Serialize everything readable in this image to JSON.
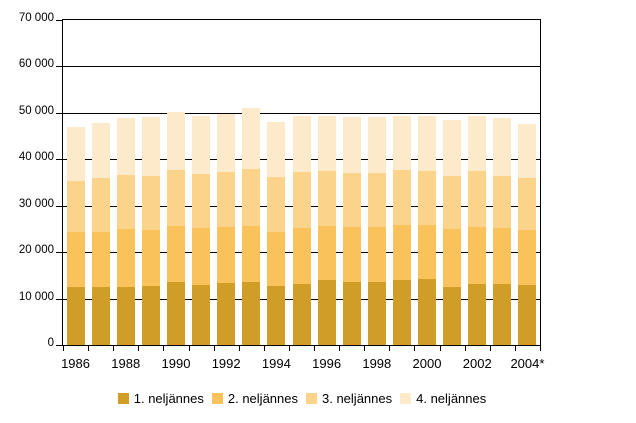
{
  "chart_data": {
    "type": "bar",
    "variant": "stacked",
    "title": "",
    "categories": [
      "1986",
      "1987",
      "1988",
      "1989",
      "1990",
      "1991",
      "1992",
      "1993",
      "1994",
      "1995",
      "1996",
      "1997",
      "1998",
      "1999",
      "2000",
      "2001",
      "2002",
      "2003",
      "2004*"
    ],
    "x_tick_labels": [
      "1986",
      "1988",
      "1990",
      "1992",
      "1994",
      "1996",
      "1998",
      "2000",
      "2002",
      "2004*"
    ],
    "y_tick_labels": [
      "0",
      "10 000",
      "20 000",
      "30 000",
      "40 000",
      "50 000",
      "60 000",
      "70 000"
    ],
    "ylim": [
      0,
      70000
    ],
    "ytick_step": 10000,
    "grid": "horizontal-behind-bars",
    "legend_position": "bottom",
    "axis_color": "#000000",
    "background_color": "#FFFFFF",
    "series": [
      {
        "name": "1. neljännes",
        "color": "#D09E26",
        "values": [
          12600,
          12500,
          12500,
          12800,
          13500,
          12900,
          13400,
          13500,
          12700,
          13200,
          14000,
          13500,
          13500,
          14100,
          14200,
          12400,
          13200,
          13200,
          12900
        ]
      },
      {
        "name": "2. neljännes",
        "color": "#FAC25A",
        "values": [
          11800,
          11900,
          12400,
          11900,
          12200,
          12300,
          12100,
          12200,
          11700,
          11900,
          11700,
          11900,
          11900,
          11800,
          11600,
          12600,
          12300,
          12000,
          11800
        ]
      },
      {
        "name": "3. neljännes",
        "color": "#FBD38B",
        "values": [
          10900,
          11500,
          11700,
          11800,
          11900,
          11700,
          11800,
          12300,
          11700,
          12100,
          11700,
          11700,
          11600,
          11700,
          11700,
          11500,
          12000,
          11300,
          11300
        ]
      },
      {
        "name": "4. neljännes",
        "color": "#FCEACA",
        "values": [
          11700,
          11900,
          12400,
          12700,
          12500,
          12400,
          12500,
          13000,
          11900,
          12100,
          12000,
          12100,
          12100,
          11800,
          11900,
          12000,
          11900,
          12500,
          11600
        ]
      }
    ],
    "totals": [
      47000,
      47800,
      49000,
      49200,
      50100,
      49300,
      49800,
      51000,
      48000,
      49300,
      49400,
      49200,
      49100,
      49400,
      49400,
      48500,
      49400,
      49000,
      47600
    ]
  }
}
